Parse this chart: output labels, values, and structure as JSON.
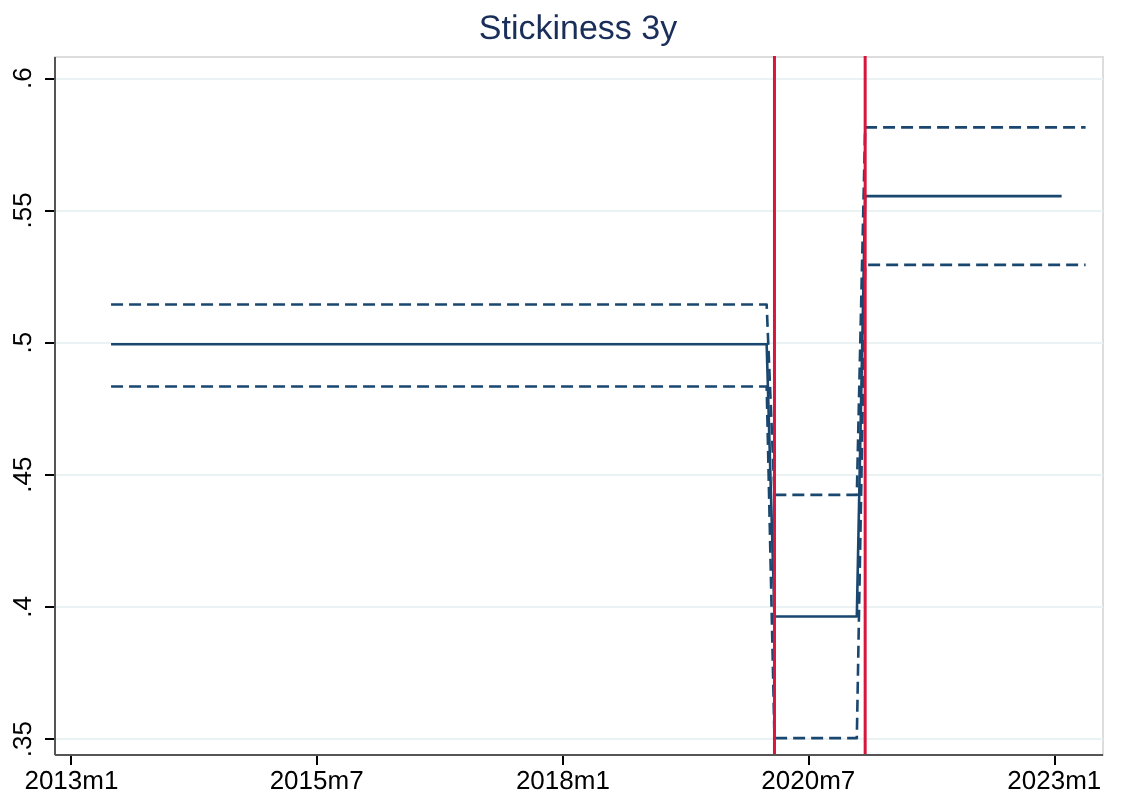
{
  "chart_data": {
    "type": "line",
    "title": "Stickiness 3y",
    "xlim": [
      "2012-11",
      "2023-07"
    ],
    "xticks": [
      {
        "value": "2013-01",
        "label": "2013m1"
      },
      {
        "value": "2015-07",
        "label": "2015m7"
      },
      {
        "value": "2018-01",
        "label": "2018m1"
      },
      {
        "value": "2020-07",
        "label": "2020m7"
      },
      {
        "value": "2023-01",
        "label": "2023m1"
      }
    ],
    "ylim": [
      0.344,
      0.608
    ],
    "yticks": [
      {
        "value": 0.35,
        "label": ".35"
      },
      {
        "value": 0.4,
        "label": ".4"
      },
      {
        "value": 0.45,
        "label": ".45"
      },
      {
        "value": 0.5,
        "label": ".5"
      },
      {
        "value": 0.55,
        "label": ".55"
      },
      {
        "value": 0.6,
        "label": ".6"
      }
    ],
    "series": [
      {
        "color": "#1a476f",
        "line_style": "solid",
        "x": [
          "2013-06",
          "2020-02",
          "2020-03",
          "2021-01",
          "2021-02",
          "2023-02"
        ],
        "values": [
          0.499,
          0.499,
          0.396,
          0.396,
          0.555,
          0.555
        ]
      },
      {
        "color": "#1a476f",
        "line_style": "dashed",
        "x": [
          "2013-06",
          "2020-02",
          "2020-03",
          "2021-01",
          "2021-02",
          "2023-05"
        ],
        "values": [
          0.514,
          0.514,
          0.442,
          0.442,
          0.581,
          0.581
        ]
      },
      {
        "color": "#1a476f",
        "line_style": "dashed",
        "x": [
          "2013-06",
          "2020-02",
          "2020-03",
          "2021-01",
          "2021-02",
          "2023-05"
        ],
        "values": [
          0.483,
          0.483,
          0.35,
          0.35,
          0.529,
          0.529
        ]
      }
    ],
    "ref_lines": [
      {
        "axis": "x",
        "value": "2020-03",
        "color": "#d6163c"
      },
      {
        "axis": "x",
        "value": "2021-02",
        "color": "#d6163c"
      }
    ],
    "grid": "y"
  }
}
